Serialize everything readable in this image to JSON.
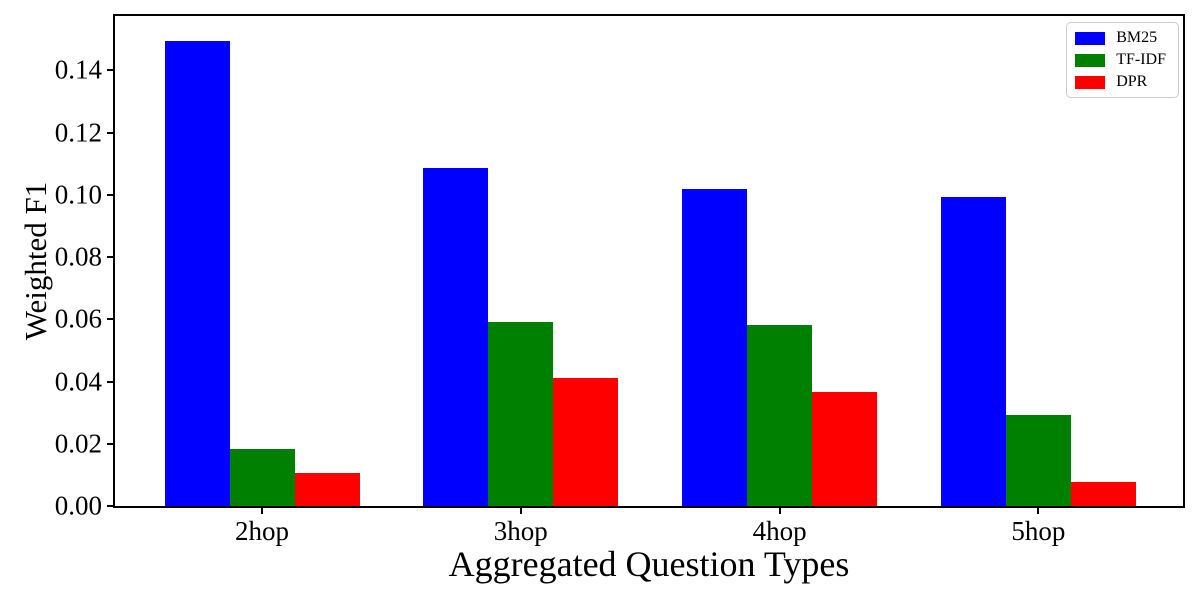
{
  "figure": {
    "background": "#ffffff",
    "text_color": "#000000",
    "spine_color": "#000000",
    "legend_border_color": "#cccccc"
  },
  "chart_data": {
    "type": "bar",
    "title": "",
    "xlabel": "Aggregated Question Types",
    "ylabel": "Weighted F1",
    "categories": [
      "2hop",
      "3hop",
      "4hop",
      "5hop"
    ],
    "series": [
      {
        "name": "BM25",
        "color": "#0000ff",
        "values": [
          0.1495,
          0.1085,
          0.102,
          0.0992
        ]
      },
      {
        "name": "TF-IDF",
        "color": "#008000",
        "values": [
          0.0183,
          0.059,
          0.0582,
          0.0293
        ]
      },
      {
        "name": "DPR",
        "color": "#ff0000",
        "values": [
          0.0105,
          0.0412,
          0.0365,
          0.0078
        ]
      }
    ],
    "ytick_labels": [
      "0.00",
      "0.02",
      "0.04",
      "0.06",
      "0.08",
      "0.10",
      "0.12",
      "0.14"
    ],
    "yticks": [
      0.0,
      0.02,
      0.04,
      0.06,
      0.08,
      0.1,
      0.12,
      0.14
    ],
    "ylim": [
      0,
      0.1575
    ],
    "grid": false,
    "legend_position": "upper right"
  }
}
